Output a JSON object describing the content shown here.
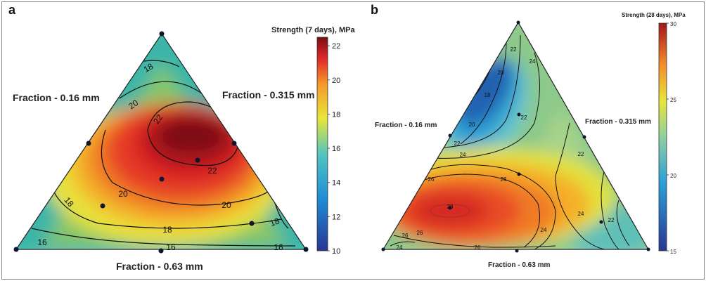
{
  "chart_data": [
    {
      "type": "ternary-contour",
      "panel_label": "a",
      "colorbar_title": "Strength (7 days), MPa",
      "colorbar_range": [
        10,
        22.5
      ],
      "colorbar_ticks": [
        "22",
        "20",
        "18",
        "16",
        "14",
        "12",
        "10"
      ],
      "colorbar_tick_values": [
        22,
        20,
        18,
        16,
        14,
        12,
        10
      ],
      "axis_labels": {
        "left": "Fraction - 0.16 mm",
        "right": "Fraction - 0.315 mm",
        "bottom": "Fraction - 0.63 mm"
      },
      "contour_levels": [
        16,
        18,
        20,
        22
      ],
      "contour_labels": [
        "18",
        "20",
        "22",
        "18",
        "20",
        "22",
        "20",
        "18",
        "16",
        "18",
        "16",
        "16"
      ],
      "peak_value": 23,
      "design_points": 10
    },
    {
      "type": "ternary-contour",
      "panel_label": "b",
      "colorbar_title": "Strength (28 days), MPa",
      "colorbar_range": [
        15,
        30
      ],
      "colorbar_ticks": [
        "30",
        "25",
        "20",
        "15"
      ],
      "colorbar_tick_values": [
        30,
        25,
        20,
        15
      ],
      "axis_labels": {
        "left": "Fraction - 0.16 mm",
        "right": "Fraction - 0.315 mm",
        "bottom": "Fraction - 0.63 mm"
      },
      "contour_levels": [
        18,
        20,
        22,
        24,
        26,
        28
      ],
      "contour_labels": [
        "22",
        "24",
        "20",
        "18",
        "20",
        "22",
        "22",
        "24",
        "26",
        "26",
        "28",
        "26",
        "26",
        "22",
        "24",
        "24",
        "26",
        "24",
        "22"
      ],
      "peak_value": 28.5,
      "design_points": 10
    }
  ]
}
